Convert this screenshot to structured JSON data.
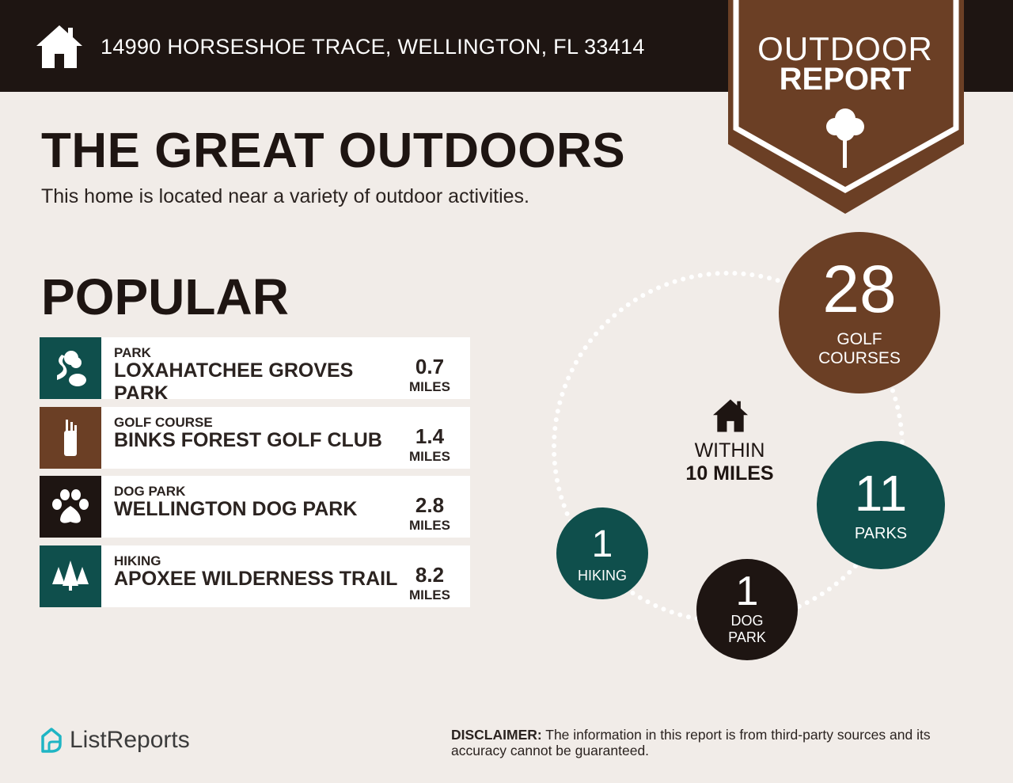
{
  "header": {
    "address": "14990 HORSESHOE TRACE, WELLINGTON, FL 33414",
    "icon": "home-icon"
  },
  "banner": {
    "line1": "OUTDOOR",
    "line2": "REPORT",
    "icon": "tree-icon"
  },
  "title": "THE GREAT OUTDOORS",
  "subtitle": "This home is located near a variety of outdoor activities.",
  "popular": {
    "heading": "POPULAR",
    "items": [
      {
        "category": "PARK",
        "name": "LOXAHATCHEE GROVES PARK",
        "distance": "0.7",
        "unit": "MILES",
        "icon": "park-icon",
        "color": "#0f4f4c"
      },
      {
        "category": "GOLF COURSE",
        "name": "BINKS FOREST GOLF CLUB",
        "distance": "1.4",
        "unit": "MILES",
        "icon": "golf-bag-icon",
        "color": "#6b3f25"
      },
      {
        "category": "DOG PARK",
        "name": "WELLINGTON DOG PARK",
        "distance": "2.8",
        "unit": "MILES",
        "icon": "paw-icon",
        "color": "#1e1512"
      },
      {
        "category": "HIKING",
        "name": "APOXEE WILDERNESS TRAIL",
        "distance": "8.2",
        "unit": "MILES",
        "icon": "pine-trees-icon",
        "color": "#0f4f4c"
      }
    ]
  },
  "summary": {
    "within_line1": "WITHIN",
    "within_line2": "10 MILES",
    "golf": {
      "count": "28",
      "label1": "GOLF",
      "label2": "COURSES"
    },
    "parks": {
      "count": "11",
      "label": "PARKS"
    },
    "dog": {
      "count": "1",
      "label1": "DOG",
      "label2": "PARK"
    },
    "hiking": {
      "count": "1",
      "label": "HIKING"
    }
  },
  "footer": {
    "brand": "ListReports",
    "disclaimer_label": "DISCLAIMER:",
    "disclaimer": " The information in this report is from third-party sources and its accuracy cannot be guaranteed."
  },
  "colors": {
    "dark": "#1e1512",
    "brown": "#6b3f25",
    "teal": "#0f4f4c",
    "background": "#f1ece8"
  }
}
